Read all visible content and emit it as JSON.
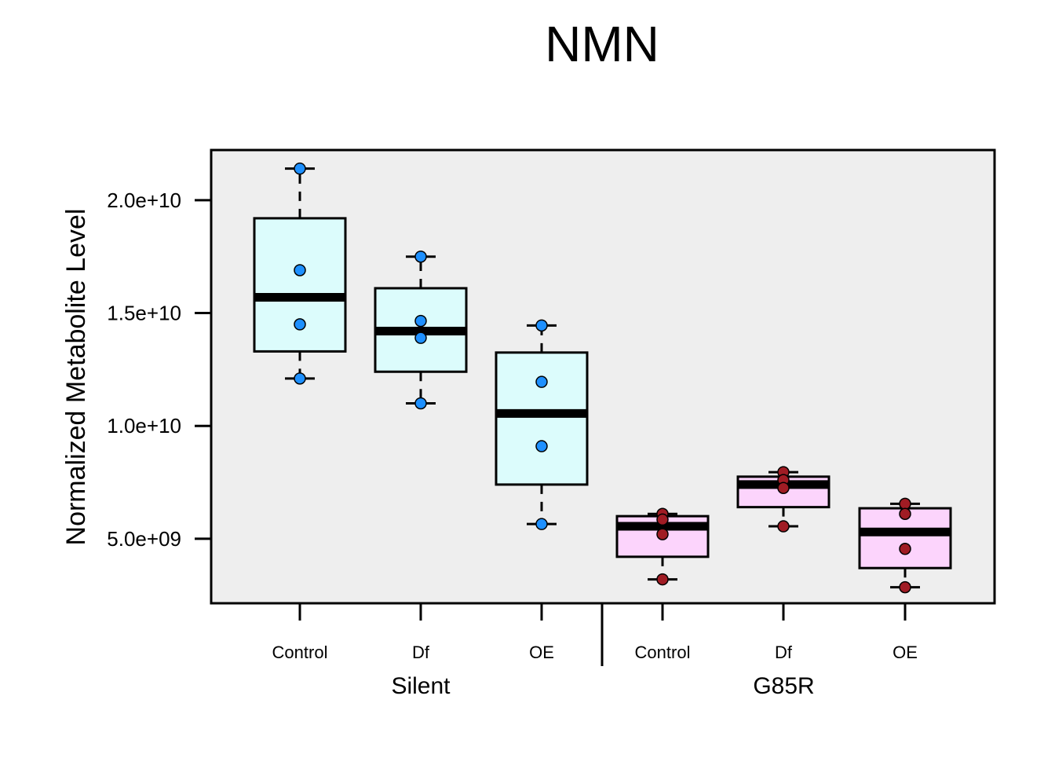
{
  "chart_data": {
    "type": "box",
    "title": "NMN",
    "xlabel": "",
    "ylabel": "Normalized Metabolite Level",
    "yticks": [
      5000000000.0,
      10000000000.0,
      15000000000.0,
      20000000000.0
    ],
    "ytick_labels": [
      "5.0e+09",
      "1.0e+10",
      "1.5e+10",
      "2.0e+10"
    ],
    "ylim": [
      2100000000.0,
      22200000000.0
    ],
    "grid": false,
    "legend": "none",
    "panel_bg": "#eeeeee",
    "groups": [
      {
        "name": "Silent",
        "box_fill": "#dcfcfc",
        "point_color": "#1e90ff",
        "boxes": [
          {
            "label": "Control",
            "min": 12100000000.0,
            "q1": 13300000000.0,
            "median": 15700000000.0,
            "q3": 19200000000.0,
            "max": 21400000000.0,
            "points": [
              21400000000.0,
              16900000000.0,
              14500000000.0,
              12100000000.0
            ]
          },
          {
            "label": "Df",
            "min": 11000000000.0,
            "q1": 12400000000.0,
            "median": 14200000000.0,
            "q3": 16100000000.0,
            "max": 17500000000.0,
            "points": [
              17500000000.0,
              14650000000.0,
              13900000000.0,
              11000000000.0
            ]
          },
          {
            "label": "OE",
            "min": 5650000000.0,
            "q1": 7400000000.0,
            "median": 10550000000.0,
            "q3": 13250000000.0,
            "max": 14450000000.0,
            "points": [
              14450000000.0,
              11950000000.0,
              9100000000.0,
              5650000000.0
            ]
          }
        ]
      },
      {
        "name": "G85R",
        "box_fill": "#fcd4fc",
        "point_color": "#a01c24",
        "boxes": [
          {
            "label": "Control",
            "min": 3200000000.0,
            "q1": 4200000000.0,
            "median": 5550000000.0,
            "q3": 6000000000.0,
            "max": 6100000000.0,
            "points": [
              6100000000.0,
              5850000000.0,
              5200000000.0,
              3200000000.0
            ]
          },
          {
            "label": "Df",
            "min": 5550000000.0,
            "q1": 6400000000.0,
            "median": 7400000000.0,
            "q3": 7750000000.0,
            "max": 7950000000.0,
            "points": [
              7950000000.0,
              7600000000.0,
              7250000000.0,
              5550000000.0
            ]
          },
          {
            "label": "OE",
            "min": 2850000000.0,
            "q1": 3700000000.0,
            "median": 5300000000.0,
            "q3": 6350000000.0,
            "max": 6550000000.0,
            "points": [
              6550000000.0,
              6100000000.0,
              4550000000.0,
              2850000000.0
            ]
          }
        ]
      }
    ]
  }
}
